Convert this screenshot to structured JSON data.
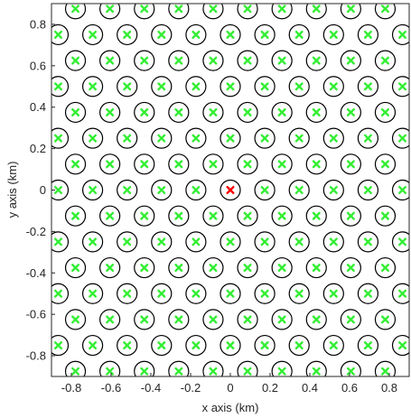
{
  "chart_data": {
    "type": "scatter",
    "xlabel": "x axis (km)",
    "ylabel": "y axis (km)",
    "xlim": [
      -0.9,
      0.9
    ],
    "ylim": [
      -0.9,
      0.9
    ],
    "xticks": [
      -0.8,
      -0.6,
      -0.4,
      -0.2,
      0,
      0.2,
      0.4,
      0.6,
      0.8
    ],
    "xtick_labels": [
      "-0.8",
      "-0.6",
      "-0.4",
      "-0.2",
      "0",
      "0.2",
      "0.4",
      "0.6",
      "0.8"
    ],
    "yticks": [
      -0.8,
      -0.6,
      -0.4,
      -0.2,
      0,
      0.2,
      0.4,
      0.6,
      0.8
    ],
    "ytick_labels": [
      "-0.8",
      "-0.6",
      "-0.4",
      "-0.2",
      "0",
      "0.2",
      "0.4",
      "0.6",
      "0.8"
    ],
    "grid": false,
    "lattice": {
      "spacing_x": 0.1732,
      "row_spacing_y": 0.125,
      "row_offset_x": 0.0866,
      "note_colors": "green crosses with black circles; red cross at origin"
    },
    "series": [
      {
        "marker": "x",
        "color": "#33ee33"
      },
      {
        "marker": "circle",
        "color": "#000000"
      },
      {
        "marker": "x",
        "color": "#ff0000",
        "points": [
          [
            0,
            0
          ]
        ]
      }
    ]
  },
  "colors": {
    "ue_marker": "#33ee33",
    "center_marker": "#ff0000",
    "circle": "#000000",
    "axis": "#262626"
  }
}
